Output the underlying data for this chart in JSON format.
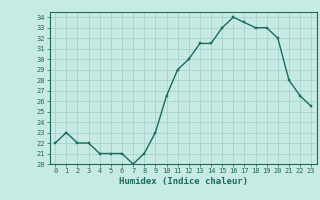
{
  "x": [
    0,
    1,
    2,
    3,
    4,
    5,
    6,
    7,
    8,
    9,
    10,
    11,
    12,
    13,
    14,
    15,
    16,
    17,
    18,
    19,
    20,
    21,
    22,
    23
  ],
  "y": [
    22.0,
    23.0,
    22.0,
    22.0,
    21.0,
    21.0,
    21.0,
    20.0,
    21.0,
    23.0,
    26.5,
    29.0,
    30.0,
    31.5,
    31.5,
    33.0,
    34.0,
    33.5,
    33.0,
    33.0,
    32.0,
    28.0,
    26.5,
    25.5
  ],
  "line_color": "#1a6b5a",
  "marker_color": "#1a6b5a",
  "bg_color": "#c8eae4",
  "grid_color": "#9dd0c8",
  "axis_color": "#1a6b5a",
  "xlabel": "Humidex (Indice chaleur)",
  "ylim": [
    20,
    34.5
  ],
  "xlim": [
    -0.5,
    23.5
  ],
  "yticks": [
    20,
    21,
    22,
    23,
    24,
    25,
    26,
    27,
    28,
    29,
    30,
    31,
    32,
    33,
    34
  ],
  "xticks": [
    0,
    1,
    2,
    3,
    4,
    5,
    6,
    7,
    8,
    9,
    10,
    11,
    12,
    13,
    14,
    15,
    16,
    17,
    18,
    19,
    20,
    21,
    22,
    23
  ],
  "marker_size": 2.0,
  "line_width": 1.0,
  "label_fontsize": 6.5,
  "tick_fontsize": 5.0
}
